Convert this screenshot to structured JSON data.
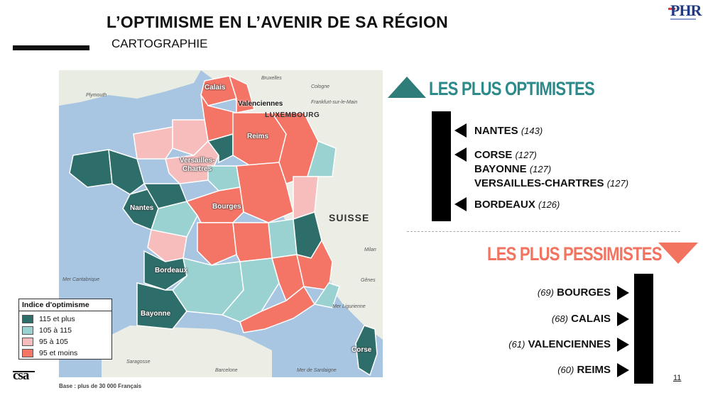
{
  "header": {
    "title": "L’OPTIMISME EN L’AVENIR DE SA RÉGION",
    "subtitle": "CARTOGRAPHIE"
  },
  "logo_top": "PHR",
  "colors": {
    "teal": "#2e6e6a",
    "light_teal": "#9ad2d2",
    "pink": "#f7bcbc",
    "red": "#f47566",
    "heading_teal": "#2e8a8a",
    "heading_red": "#f2735f"
  },
  "map": {
    "labels": {
      "calais": "Calais",
      "valenciennes": "Valenciennes",
      "reims": "Reims",
      "versailles": "Versailles-",
      "chartres": "Chartres",
      "nantes": "Nantes",
      "bourges": "Bourges",
      "bordeaux": "Bordeaux",
      "bayonne": "Bayonne",
      "corse": "Corse"
    },
    "background_labels": {
      "luxembourg": "LUXEMBOURG",
      "suisse": "SUISSE",
      "plymouth": "Plymouth",
      "bruxelles": "Bruxelles",
      "cologne": "Cologne",
      "frankfurt": "Frankfurt-sur-le-Main",
      "milan": "Milan",
      "genes": "Gênes",
      "mer_ligurienne": "Mer Ligurienne",
      "mer_sardaigne": "Mer de Sardaigne",
      "barcelone": "Barcelone",
      "saragosse": "Saragosse",
      "cantabrique": "Mer Cantabrique"
    }
  },
  "legend": {
    "title": "Indice d'optimisme",
    "items": [
      {
        "label": "115 et plus",
        "color": "#2e6e6a"
      },
      {
        "label": "105 à 115",
        "color": "#9ad2d2"
      },
      {
        "label": "95 à 105",
        "color": "#f7bcbc"
      },
      {
        "label": "95 et moins",
        "color": "#f47566"
      }
    ]
  },
  "optimists": {
    "heading": "LES PLUS OPTIMISTES",
    "items": [
      {
        "city": "NANTES",
        "score": "(143)"
      },
      {
        "city": "CORSE",
        "score": "(127)"
      },
      {
        "city": "BAYONNE",
        "score": "(127)"
      },
      {
        "city": "VERSAILLES-CHARTRES",
        "score": "(127)"
      },
      {
        "city": "BORDEAUX",
        "score": "(126)"
      }
    ]
  },
  "pessimists": {
    "heading": "LES PLUS PESSIMISTES",
    "items": [
      {
        "city": "BOURGES",
        "score": "(69)"
      },
      {
        "city": "CALAIS",
        "score": "(68)"
      },
      {
        "city": "VALENCIENNES",
        "score": "(61)"
      },
      {
        "city": "REIMS",
        "score": "(60)"
      }
    ]
  },
  "footer": {
    "logo": "csa",
    "base": "Base : plus de 30 000 Français",
    "page": "11"
  }
}
